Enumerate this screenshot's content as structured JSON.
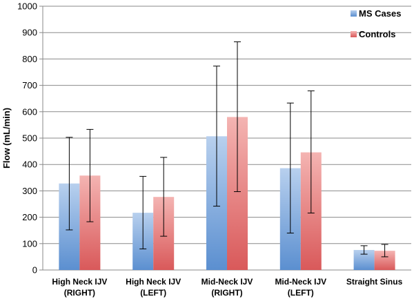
{
  "chart_data": {
    "type": "bar",
    "ylabel": "Flow (mL/min)",
    "ylim": [
      0,
      1000
    ],
    "yticks": [
      0,
      100,
      200,
      300,
      400,
      500,
      600,
      700,
      800,
      900,
      1000
    ],
    "categories": [
      [
        "High Neck IJV",
        "(RIGHT)"
      ],
      [
        "High Neck IJV",
        "(LEFT)"
      ],
      [
        "Mid-Neck IJV",
        "(RIGHT)"
      ],
      [
        "Mid-Neck IJV",
        "(LEFT)"
      ],
      [
        "Straight Sinus"
      ]
    ],
    "series": [
      {
        "name": "MS Cases",
        "color": "#5b8fd0",
        "color_light": "#b8d0ee",
        "values": [
          328,
          217,
          507,
          386,
          76
        ],
        "error_low": [
          152,
          80,
          242,
          140,
          60
        ],
        "error_high": [
          503,
          355,
          773,
          633,
          92
        ]
      },
      {
        "name": "Controls",
        "color": "#d9595a",
        "color_light": "#f4b4b2",
        "values": [
          358,
          277,
          580,
          446,
          73
        ],
        "error_low": [
          183,
          128,
          297,
          216,
          50
        ],
        "error_high": [
          533,
          427,
          865,
          679,
          97
        ]
      }
    ],
    "grid": true,
    "legend_position": "top-right"
  }
}
